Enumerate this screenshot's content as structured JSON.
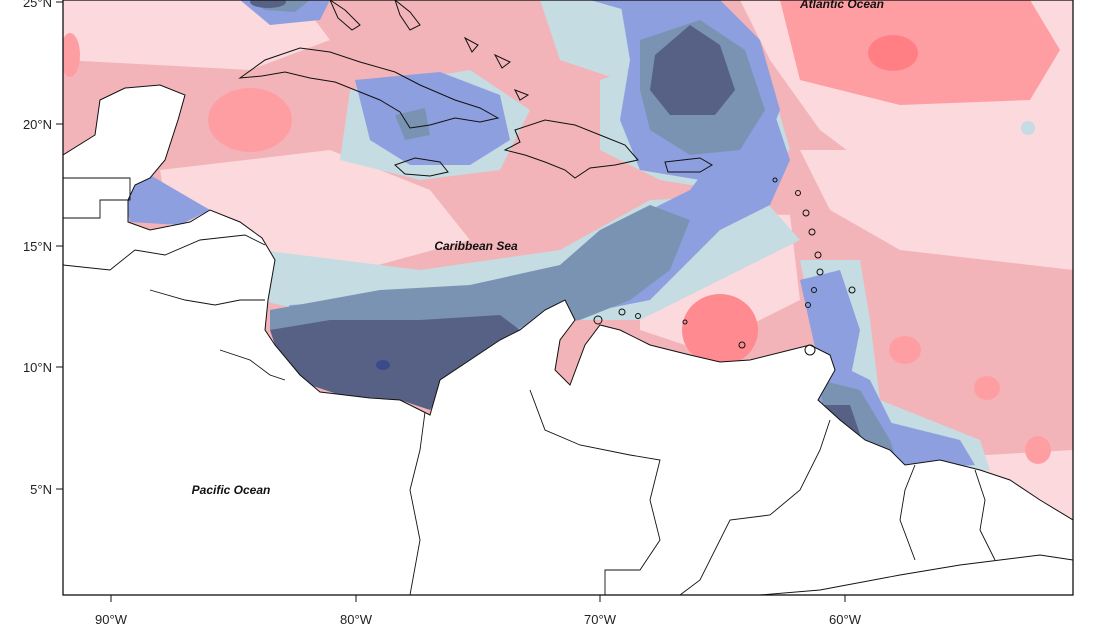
{
  "map": {
    "labels": {
      "atlantic": "Atlantic Ocean",
      "caribbean": "Caribbean Sea",
      "pacific": "Pacific Ocean"
    },
    "lat_ticks": [
      "25°N",
      "20°N",
      "15°N",
      "10°N",
      "5°N"
    ],
    "lon_ticks": [
      "90°W",
      "80°W",
      "70°W",
      "60°W"
    ],
    "extent": {
      "lon": [
        -92,
        -51
      ],
      "lat": [
        1,
        25
      ]
    },
    "colors": {
      "red_strong": "#ff8a8f",
      "red": "#f2b4b8",
      "red_light": "#fbd9dc",
      "very_light": "#fdeeef",
      "blue_pale": "#c5dce2",
      "blue": "#8e9fe0",
      "blue_grey": "#7a93b3",
      "navy": "#576185",
      "land": "#ffffff"
    }
  }
}
